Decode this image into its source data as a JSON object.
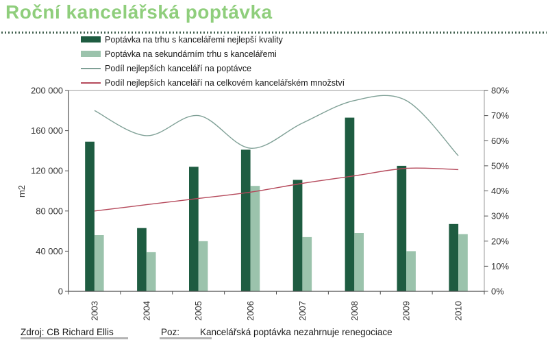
{
  "page": {
    "title": "Roční kancelářská poptávka",
    "footer": {
      "source": "Zdroj: CB Richard Ellis",
      "note_label": "Poz:",
      "note": "Kancelářská poptávka nezahrnuje renegociace"
    }
  },
  "colors": {
    "title": "#8FCE7C",
    "divider_dots": "#41604F",
    "axis_line_light": "#999999",
    "axis_line_dark": "#4d4d4d",
    "tick_text": "#333333"
  },
  "chart_data": {
    "type": "bar+line combo",
    "categories": [
      "2003",
      "2004",
      "2005",
      "2006",
      "2007",
      "2008",
      "2009",
      "2010"
    ],
    "series": [
      {
        "name": "Poptávka na trhu s kancelářemi nejlepší kvality",
        "type": "bar",
        "axis": "left",
        "color": "#1E5C41",
        "values": [
          149000,
          63000,
          124000,
          141000,
          111000,
          173000,
          125000,
          67000
        ]
      },
      {
        "name": "Poptávka na sekundárním trhu s kancelářemi",
        "type": "bar",
        "axis": "left",
        "color": "#9BC3AC",
        "values": [
          56000,
          39000,
          50000,
          105000,
          54000,
          58000,
          40000,
          57000
        ]
      },
      {
        "name": "Podíl nejlepších kanceláří na poptávce",
        "type": "line",
        "axis": "right",
        "color": "#7FA096",
        "unit": "%",
        "values": [
          72,
          62,
          70,
          57,
          67,
          76,
          76,
          54
        ]
      },
      {
        "name": "Podíl nejlepších kanceláří na celkovém kancelářském množství",
        "type": "line",
        "axis": "right",
        "color": "#B5495B",
        "unit": "%",
        "values": [
          32,
          34.5,
          37,
          39.5,
          43,
          46,
          49,
          48.5
        ]
      }
    ],
    "left_axis": {
      "label": "m2",
      "min": 0,
      "max": 200000,
      "ticks": [
        "0",
        "40 000",
        "80 000",
        "120 000",
        "160 000",
        "200 000"
      ]
    },
    "right_axis": {
      "min": 0,
      "max": 80,
      "ticks": [
        "0%",
        "10%",
        "20%",
        "30%",
        "40%",
        "50%",
        "60%",
        "70%",
        "80%"
      ]
    },
    "grid": false,
    "legend_position": "top-left",
    "smoothed_lines": true
  }
}
